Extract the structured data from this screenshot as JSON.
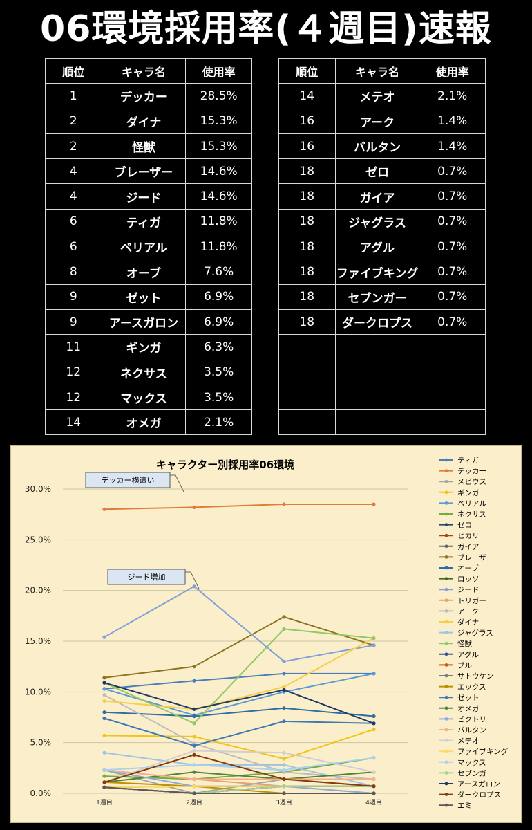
{
  "title": "06環境採用率(４週目)速報",
  "table": {
    "headers": [
      "順位",
      "キャラ名",
      "使用率"
    ],
    "left": [
      {
        "rank": "1",
        "name": "デッカー",
        "rate": "28.5%"
      },
      {
        "rank": "2",
        "name": "ダイナ",
        "rate": "15.3%"
      },
      {
        "rank": "2",
        "name": "怪獣",
        "rate": "15.3%"
      },
      {
        "rank": "4",
        "name": "ブレーザー",
        "rate": "14.6%"
      },
      {
        "rank": "4",
        "name": "ジード",
        "rate": "14.6%"
      },
      {
        "rank": "6",
        "name": "ティガ",
        "rate": "11.8%"
      },
      {
        "rank": "6",
        "name": "ベリアル",
        "rate": "11.8%"
      },
      {
        "rank": "8",
        "name": "オーブ",
        "rate": "7.6%"
      },
      {
        "rank": "9",
        "name": "ゼット",
        "rate": "6.9%"
      },
      {
        "rank": "9",
        "name": "アースガロン",
        "rate": "6.9%"
      },
      {
        "rank": "11",
        "name": "ギンガ",
        "rate": "6.3%"
      },
      {
        "rank": "12",
        "name": "ネクサス",
        "rate": "3.5%"
      },
      {
        "rank": "12",
        "name": "マックス",
        "rate": "3.5%"
      },
      {
        "rank": "14",
        "name": "オメガ",
        "rate": "2.1%"
      }
    ],
    "right": [
      {
        "rank": "14",
        "name": "メテオ",
        "rate": "2.1%"
      },
      {
        "rank": "16",
        "name": "アーク",
        "rate": "1.4%"
      },
      {
        "rank": "16",
        "name": "バルタン",
        "rate": "1.4%"
      },
      {
        "rank": "18",
        "name": "ゼロ",
        "rate": "0.7%"
      },
      {
        "rank": "18",
        "name": "ガイア",
        "rate": "0.7%"
      },
      {
        "rank": "18",
        "name": "ジャグラス",
        "rate": "0.7%"
      },
      {
        "rank": "18",
        "name": "アグル",
        "rate": "0.7%"
      },
      {
        "rank": "18",
        "name": "ファイブキング",
        "rate": "0.7%"
      },
      {
        "rank": "18",
        "name": "セブンガー",
        "rate": "0.7%"
      },
      {
        "rank": "18",
        "name": "ダークロプス",
        "rate": "0.7%"
      },
      {
        "rank": "",
        "name": "",
        "rate": ""
      },
      {
        "rank": "",
        "name": "",
        "rate": ""
      },
      {
        "rank": "",
        "name": "",
        "rate": ""
      },
      {
        "rank": "",
        "name": "",
        "rate": ""
      }
    ]
  },
  "chart_data": {
    "type": "line",
    "title": "キャラクター別採用率06環境",
    "categories": [
      "1週目",
      "2週目",
      "3週目",
      "4週目"
    ],
    "ylim": [
      0,
      30
    ],
    "yticks": [
      "0.0%",
      "5.0%",
      "10.0%",
      "15.0%",
      "20.0%",
      "25.0%",
      "30.0%"
    ],
    "grid": true,
    "legend_position": "right",
    "annotations": [
      {
        "text": "デッカー横這い",
        "series": "デッカー",
        "point": 0
      },
      {
        "text": "ジード増加",
        "series": "ジード",
        "point": 1
      }
    ],
    "series": [
      {
        "name": "ティガ",
        "color": "#4a7ebb",
        "values": [
          10.3,
          11.1,
          11.8,
          11.8
        ]
      },
      {
        "name": "デッカー",
        "color": "#e07b39",
        "values": [
          28.0,
          28.2,
          28.5,
          28.5
        ]
      },
      {
        "name": "メビウス",
        "color": "#a5a5a5",
        "values": [
          2.3,
          0.0,
          1.4,
          0.7
        ]
      },
      {
        "name": "ギンガ",
        "color": "#f2c318",
        "values": [
          5.7,
          5.6,
          3.4,
          6.3
        ]
      },
      {
        "name": "ベリアル",
        "color": "#5a9bd5",
        "values": [
          10.3,
          7.7,
          10.0,
          11.8
        ]
      },
      {
        "name": "ネクサス",
        "color": "#70ad47",
        "values": [
          1.7,
          1.4,
          2.1,
          3.5
        ]
      },
      {
        "name": "ゼロ",
        "color": "#264478",
        "values": [
          0.6,
          0.0,
          0.7,
          0.7
        ]
      },
      {
        "name": "ヒカリ",
        "color": "#9e480e",
        "values": [
          0.6,
          0.0,
          0.0,
          0.0
        ]
      },
      {
        "name": "ガイア",
        "color": "#636363",
        "values": [
          0.6,
          0.7,
          0.7,
          0.7
        ]
      },
      {
        "name": "ブレーザー",
        "color": "#8c7520",
        "values": [
          11.4,
          12.5,
          17.4,
          14.6
        ]
      },
      {
        "name": "オーブ",
        "color": "#2e6ca4",
        "values": [
          8.0,
          7.6,
          8.4,
          7.6
        ]
      },
      {
        "name": "ロッソ",
        "color": "#43682b",
        "values": [
          0.6,
          0.0,
          0.0,
          0.0
        ]
      },
      {
        "name": "ジード",
        "color": "#7fa0d8",
        "values": [
          15.4,
          20.4,
          13.0,
          14.6
        ]
      },
      {
        "name": "トリガー",
        "color": "#e8a070",
        "values": [
          2.3,
          1.4,
          0.7,
          0.0
        ]
      },
      {
        "name": "アーク",
        "color": "#bcbcbc",
        "values": [
          9.7,
          4.9,
          2.1,
          1.4
        ]
      },
      {
        "name": "ダイナ",
        "color": "#f5cf48",
        "values": [
          9.1,
          8.3,
          10.5,
          15.3
        ]
      },
      {
        "name": "ジャグラス",
        "color": "#9dc3e6",
        "values": [
          4.0,
          2.8,
          2.8,
          0.7
        ]
      },
      {
        "name": "怪獣",
        "color": "#8fc864",
        "values": [
          10.9,
          6.9,
          16.2,
          15.3
        ]
      },
      {
        "name": "アグル",
        "color": "#2f528f",
        "values": [
          0.6,
          0.0,
          0.7,
          0.7
        ]
      },
      {
        "name": "ブル",
        "color": "#c55a11",
        "values": [
          0.6,
          0.0,
          0.0,
          0.0
        ]
      },
      {
        "name": "サトウケン",
        "color": "#7b7b7b",
        "values": [
          0.6,
          0.0,
          0.0,
          0.0
        ]
      },
      {
        "name": "エックス",
        "color": "#bf9000",
        "values": [
          1.1,
          0.7,
          0.0,
          0.0
        ]
      },
      {
        "name": "ゼット",
        "color": "#3c78b4",
        "values": [
          7.4,
          4.7,
          7.1,
          6.9
        ]
      },
      {
        "name": "オメガ",
        "color": "#548235",
        "values": [
          1.1,
          2.1,
          1.4,
          2.1
        ]
      },
      {
        "name": "ビクトリー",
        "color": "#8eaadb",
        "values": [
          2.3,
          0.7,
          0.7,
          0.0
        ]
      },
      {
        "name": "バルタン",
        "color": "#f4b183",
        "values": [
          2.3,
          1.4,
          1.4,
          1.4
        ]
      },
      {
        "name": "メテオ",
        "color": "#d0cece",
        "values": [
          1.1,
          4.2,
          4.0,
          2.1
        ]
      },
      {
        "name": "ファイブキング",
        "color": "#ffd966",
        "values": [
          0.6,
          0.7,
          0.7,
          0.7
        ]
      },
      {
        "name": "マックス",
        "color": "#a9d1ee",
        "values": [
          2.3,
          2.8,
          2.3,
          3.5
        ]
      },
      {
        "name": "セブンガー",
        "color": "#a9d18e",
        "values": [
          0.6,
          0.0,
          0.7,
          0.7
        ]
      },
      {
        "name": "アースガロン",
        "color": "#1f3864",
        "values": [
          10.9,
          8.3,
          10.2,
          6.9
        ]
      },
      {
        "name": "ダークロプス",
        "color": "#843c0c",
        "values": [
          1.1,
          3.8,
          1.4,
          0.7
        ]
      },
      {
        "name": "エミ",
        "color": "#595959",
        "values": [
          0.6,
          0.0,
          0.0,
          0.0
        ]
      }
    ]
  }
}
